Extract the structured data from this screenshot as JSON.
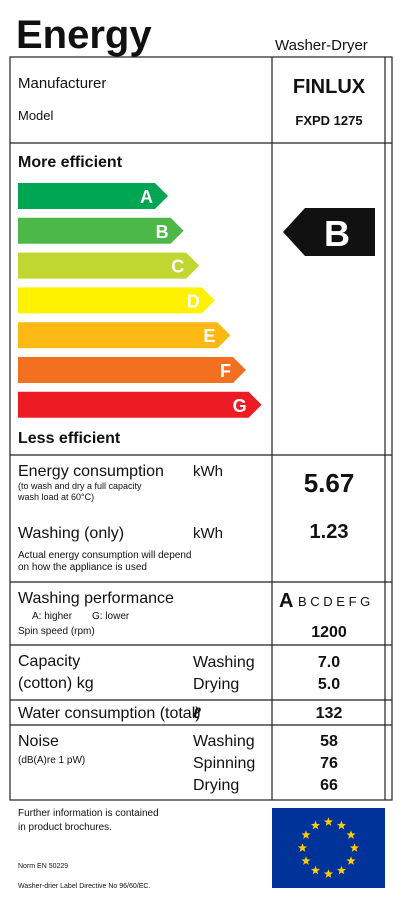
{
  "header": {
    "title": "Energy",
    "product_type": "Washer-Dryer"
  },
  "manufacturer": {
    "label": "Manufacturer",
    "value": "FINLUX"
  },
  "model": {
    "label": "Model",
    "value": "FXPD 1275"
  },
  "scale": {
    "top_label": "More efficient",
    "bottom_label": "Less efficient",
    "classes": [
      "A",
      "B",
      "C",
      "D",
      "E",
      "F",
      "G"
    ],
    "colors": [
      "#00a651",
      "#4cb848",
      "#bfd730",
      "#fff200",
      "#fdb913",
      "#f37021",
      "#ed1c24"
    ]
  },
  "rating": "B",
  "energy_consumption": {
    "label": "Energy consumption",
    "unit": "kWh",
    "note_line1": "(to wash and dry a full capacity",
    "note_line2": "wash load at 60°C)",
    "value": "5.67"
  },
  "washing_only": {
    "label": "Washing (only)",
    "unit": "kWh",
    "value": "1.23",
    "note_line1": "Actual energy consumption will depend",
    "note_line2": "on how the appliance is used"
  },
  "washing_performance": {
    "label": "Washing performance",
    "note_high": "A: higher",
    "note_low": "G: lower",
    "class": "A",
    "other_classes": "B C D E F G"
  },
  "spin_speed": {
    "label": "Spin speed (rpm)",
    "value": "1200"
  },
  "capacity": {
    "label_line1": "Capacity",
    "label_line2": "(cotton) kg",
    "washing_label": "Washing",
    "washing_value": "7.0",
    "drying_label": "Drying",
    "drying_value": "5.0"
  },
  "water": {
    "label": "Water consumption (total)",
    "unit": "ℓ",
    "value": "132"
  },
  "noise": {
    "label": "Noise",
    "unit": "(dB(A)re 1 pW)",
    "rows": [
      {
        "label": "Washing",
        "value": "58"
      },
      {
        "label": "Spinning",
        "value": "76"
      },
      {
        "label": "Drying",
        "value": "66"
      }
    ]
  },
  "footer": {
    "info_line1": "Further information is contained",
    "info_line2": "in product brochures.",
    "norm": "Norm EN 50229",
    "directive": "Washer-drier Label Directive No 96/60/EC."
  }
}
